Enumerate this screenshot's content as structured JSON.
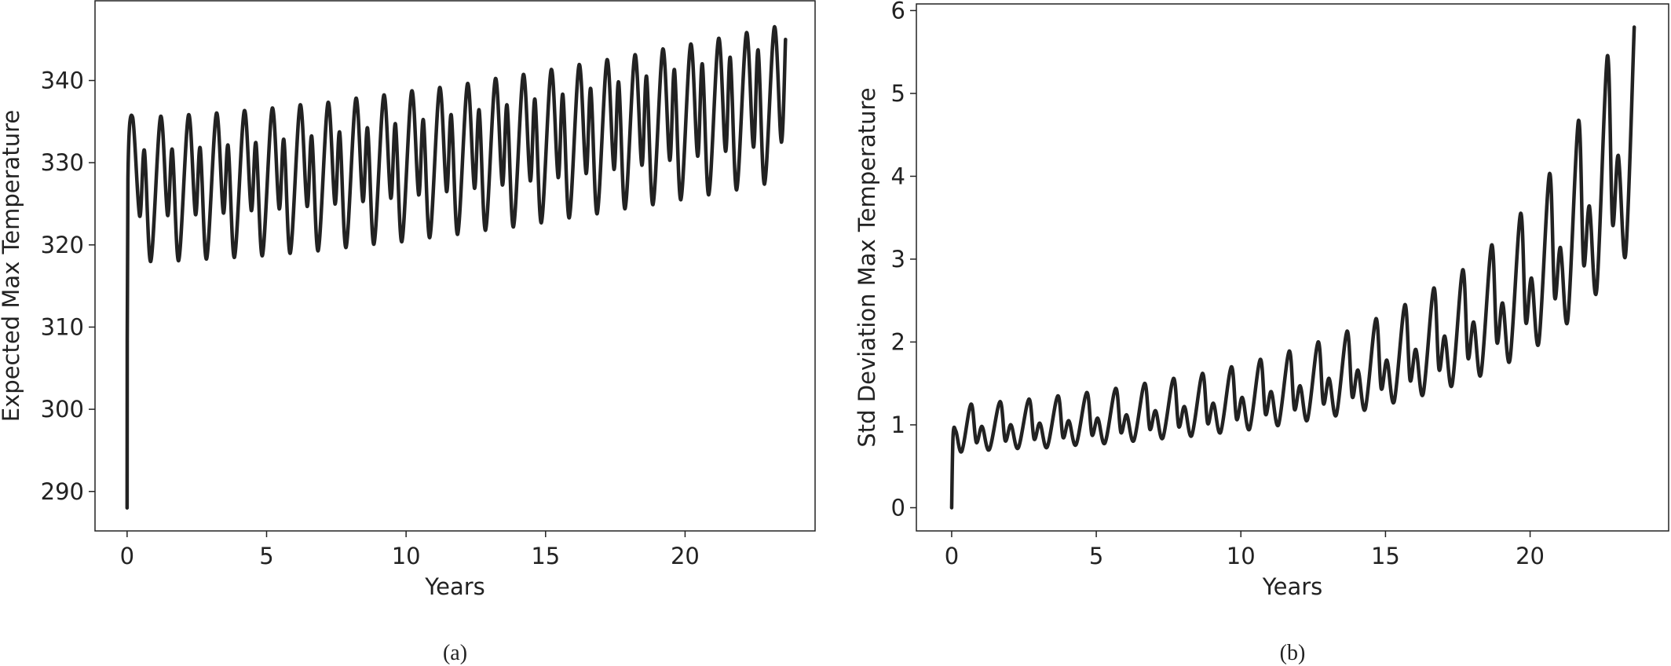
{
  "chart_data": [
    {
      "type": "line",
      "caption": "(a)",
      "xlabel": "Years",
      "ylabel": "Expected Max Temperature",
      "xlim": [
        -1.15,
        24.66
      ],
      "ylim": [
        285.2,
        349.7
      ],
      "xticks": [
        0,
        5,
        10,
        15,
        20
      ],
      "yticks": [
        290,
        300,
        310,
        320,
        330,
        340
      ],
      "x": [
        0,
        0.03,
        0.2,
        0.45,
        0.62,
        0.85,
        1.2,
        1.45,
        1.62,
        1.85,
        2.2,
        2.45,
        2.62,
        2.85,
        3.2,
        3.45,
        3.62,
        3.85,
        4.2,
        4.45,
        4.62,
        4.85,
        5.2,
        5.45,
        5.62,
        5.85,
        6.2,
        6.45,
        6.62,
        6.85,
        7.2,
        7.45,
        7.62,
        7.85,
        8.2,
        8.45,
        8.62,
        8.85,
        9.2,
        9.45,
        9.62,
        9.85,
        10.2,
        10.45,
        10.62,
        10.85,
        11.2,
        11.45,
        11.62,
        11.85,
        12.2,
        12.45,
        12.62,
        12.85,
        13.2,
        13.45,
        13.62,
        13.85,
        14.2,
        14.45,
        14.62,
        14.85,
        15.2,
        15.45,
        15.62,
        15.85,
        16.2,
        16.45,
        16.62,
        16.85,
        17.2,
        17.45,
        17.62,
        17.85,
        18.2,
        18.45,
        18.62,
        18.85,
        19.2,
        19.45,
        19.62,
        19.85,
        20.2,
        20.45,
        20.62,
        20.85,
        21.2,
        21.45,
        21.62,
        21.85,
        22.2,
        22.45,
        22.62,
        22.85,
        23.2,
        23.45,
        23.6
      ],
      "series": [
        {
          "color": "#222222",
          "values": [
            288,
            328,
            335.5,
            323.5,
            331.5,
            318.0,
            335.6,
            323.6,
            331.6,
            318.1,
            335.8,
            323.7,
            331.8,
            318.3,
            336.0,
            323.9,
            332.1,
            318.5,
            336.3,
            324.2,
            332.4,
            318.7,
            336.6,
            324.4,
            332.8,
            319.0,
            337.0,
            324.7,
            333.2,
            319.3,
            337.3,
            325.0,
            333.7,
            319.7,
            337.8,
            325.3,
            334.2,
            320.1,
            338.2,
            325.7,
            334.7,
            320.4,
            338.7,
            326.1,
            335.2,
            320.9,
            339.1,
            326.5,
            335.8,
            321.3,
            339.6,
            326.9,
            336.4,
            321.8,
            340.2,
            327.3,
            337.0,
            322.2,
            340.7,
            327.8,
            337.7,
            322.7,
            341.3,
            328.2,
            338.3,
            323.3,
            341.9,
            328.7,
            339.0,
            323.8,
            342.5,
            329.2,
            339.8,
            324.4,
            343.1,
            329.7,
            340.5,
            324.9,
            343.8,
            330.3,
            341.3,
            325.5,
            344.4,
            330.8,
            342.0,
            326.1,
            345.1,
            331.4,
            342.8,
            326.7,
            345.8,
            331.9,
            343.7,
            327.4,
            346.5,
            332.5,
            345
          ]
        }
      ]
    },
    {
      "type": "line",
      "caption": "(b)",
      "xlabel": "Years",
      "ylabel": "Std Deviation Max Temperature",
      "xlim": [
        -1.22,
        24.79
      ],
      "ylim": [
        -0.28,
        6.08
      ],
      "xticks": [
        0,
        5,
        10,
        15,
        20
      ],
      "yticks": [
        0,
        1,
        2,
        3,
        4,
        5,
        6
      ],
      "x": [
        0,
        0.05,
        0.15,
        0.35,
        0.67,
        0.85,
        1.05,
        1.3,
        1.67,
        1.85,
        2.05,
        2.3,
        2.67,
        2.85,
        3.05,
        3.3,
        3.67,
        3.85,
        4.05,
        4.3,
        4.67,
        4.85,
        5.05,
        5.3,
        5.67,
        5.85,
        6.05,
        6.3,
        6.67,
        6.85,
        7.05,
        7.3,
        7.67,
        7.85,
        8.05,
        8.3,
        8.67,
        8.85,
        9.05,
        9.3,
        9.67,
        9.85,
        10.05,
        10.3,
        10.67,
        10.85,
        11.05,
        11.3,
        11.67,
        11.85,
        12.05,
        12.3,
        12.67,
        12.85,
        13.05,
        13.3,
        13.67,
        13.85,
        14.05,
        14.3,
        14.67,
        14.85,
        15.05,
        15.3,
        15.67,
        15.85,
        16.05,
        16.3,
        16.67,
        16.85,
        17.05,
        17.3,
        17.67,
        17.85,
        18.05,
        18.3,
        18.67,
        18.85,
        19.05,
        19.3,
        19.67,
        19.85,
        20.05,
        20.3,
        20.67,
        20.85,
        21.05,
        21.3,
        21.67,
        21.85,
        22.05,
        22.3,
        22.67,
        22.85,
        23.05,
        23.3,
        23.6
      ],
      "series": [
        {
          "color": "#222222",
          "values": [
            0,
            0.88,
            0.92,
            0.68,
            1.25,
            0.79,
            0.98,
            0.7,
            1.28,
            0.81,
            1.0,
            0.72,
            1.31,
            0.83,
            1.02,
            0.73,
            1.35,
            0.85,
            1.05,
            0.76,
            1.39,
            0.88,
            1.08,
            0.78,
            1.44,
            0.91,
            1.12,
            0.81,
            1.5,
            0.95,
            1.17,
            0.84,
            1.56,
            0.98,
            1.22,
            0.87,
            1.62,
            1.02,
            1.26,
            0.91,
            1.7,
            1.07,
            1.33,
            0.95,
            1.79,
            1.13,
            1.4,
            1.0,
            1.89,
            1.19,
            1.47,
            1.06,
            2.0,
            1.26,
            1.56,
            1.12,
            2.13,
            1.34,
            1.66,
            1.19,
            2.28,
            1.44,
            1.78,
            1.28,
            2.45,
            1.54,
            1.91,
            1.37,
            2.65,
            1.67,
            2.07,
            1.48,
            2.87,
            1.81,
            2.24,
            1.61,
            3.17,
            2.0,
            2.47,
            1.78,
            3.55,
            2.24,
            2.77,
            1.99,
            4.03,
            2.54,
            3.14,
            2.26,
            4.67,
            2.94,
            3.64,
            2.62,
            5.45,
            3.43,
            4.25,
            3.05,
            5.8
          ]
        }
      ]
    }
  ]
}
